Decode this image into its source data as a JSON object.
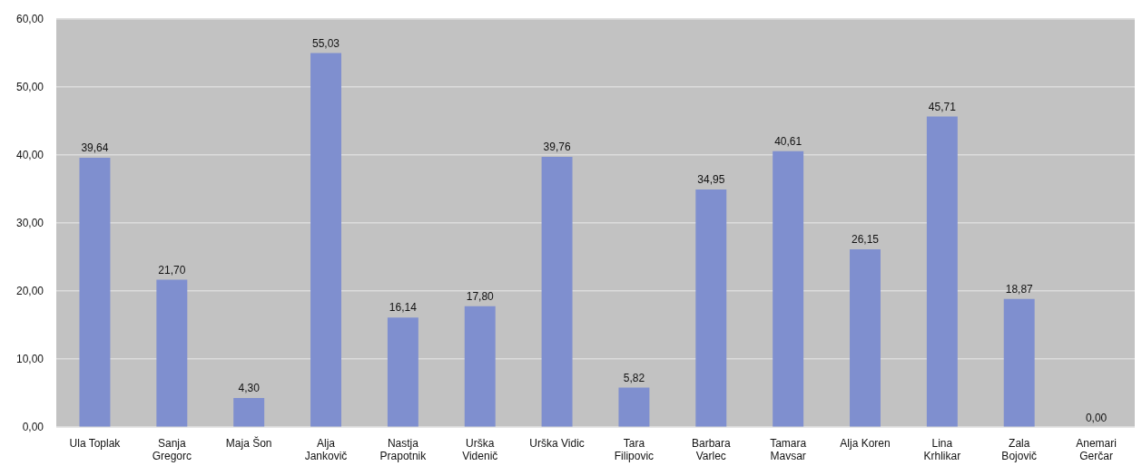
{
  "chart_data": {
    "type": "bar",
    "categories": [
      "Ula Toplak",
      "Sanja\nGregorc",
      "Maja Šon",
      "Alja\nJankovič",
      "Nastja\nPrapotnik",
      "Urška\nVidenič",
      "Urška Vidic",
      "Tara\nFilipovic",
      "Barbara\nVarlec",
      "Tamara\nMavsar",
      "Alja Koren",
      "Lina\nKrhlikar",
      "Zala\nBojovič",
      "Anemari\nGerčar"
    ],
    "values": [
      39.64,
      21.7,
      4.3,
      55.03,
      16.14,
      17.8,
      39.76,
      5.82,
      34.95,
      40.61,
      26.15,
      45.71,
      18.87,
      0.0
    ],
    "value_labels": [
      "39,64",
      "21,70",
      "4,30",
      "55,03",
      "16,14",
      "17,80",
      "39,76",
      "5,82",
      "34,95",
      "40,61",
      "26,15",
      "45,71",
      "18,87",
      "0,00"
    ],
    "color": "#7f8fcf",
    "ylim": [
      0,
      60
    ],
    "yticks": [
      {
        "value": 0,
        "label": "0,00"
      },
      {
        "value": 10,
        "label": "10,00"
      },
      {
        "value": 20,
        "label": "20,00"
      },
      {
        "value": 30,
        "label": "30,00"
      },
      {
        "value": 40,
        "label": "40,00"
      },
      {
        "value": 50,
        "label": "50,00"
      },
      {
        "value": 60,
        "label": "60,00"
      }
    ],
    "grid": "y",
    "legend": false
  }
}
